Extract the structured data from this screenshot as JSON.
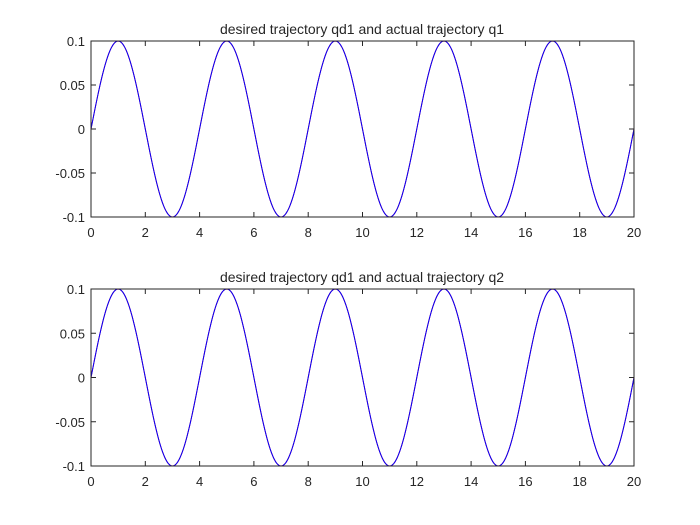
{
  "chart_data": [
    {
      "type": "line",
      "title": "desired trajectory qd1 and actual trajectory q1",
      "xlabel": "",
      "ylabel": "",
      "xlim": [
        0,
        20
      ],
      "ylim": [
        -0.1,
        0.1
      ],
      "x_ticks": [
        "0",
        "2",
        "4",
        "6",
        "8",
        "10",
        "12",
        "14",
        "16",
        "18",
        "20"
      ],
      "y_ticks": [
        "0.1",
        "0.05",
        "0",
        "-0.05",
        "-0.1"
      ],
      "grid": false,
      "box": true,
      "function": "0.1*sin(pi*t/2)",
      "x_start": 0,
      "x_end": 20,
      "series": [
        {
          "color": "#ff0000",
          "peak_t": [
            1,
            5,
            9,
            13,
            17
          ],
          "peak_value": 0.1,
          "trough_t": [
            3,
            7,
            11,
            15,
            19
          ],
          "trough_value": -0.1
        },
        {
          "color": "#0000ff",
          "peak_t": [
            1,
            5,
            9,
            13,
            17
          ],
          "peak_value": 0.1,
          "trough_t": [
            3,
            7,
            11,
            15,
            19
          ],
          "trough_value": -0.1
        }
      ]
    },
    {
      "type": "line",
      "title": "desired trajectory qd1 and actual trajectory q2",
      "xlabel": "",
      "ylabel": "",
      "xlim": [
        0,
        20
      ],
      "ylim": [
        -0.1,
        0.1
      ],
      "x_ticks": [
        "0",
        "2",
        "4",
        "6",
        "8",
        "10",
        "12",
        "14",
        "16",
        "18",
        "20"
      ],
      "y_ticks": [
        "0.1",
        "0.05",
        "0",
        "-0.05",
        "-0.1"
      ],
      "grid": false,
      "box": true,
      "function": "0.1*sin(pi*t/2)",
      "x_start": 0,
      "x_end": 20,
      "series": [
        {
          "color": "#ff0000",
          "peak_t": [
            1,
            5,
            9,
            13,
            17
          ],
          "peak_value": 0.1,
          "trough_t": [
            3,
            7,
            11,
            15,
            19
          ],
          "trough_value": -0.1
        },
        {
          "color": "#0000ff",
          "peak_t": [
            1,
            5,
            9,
            13,
            17
          ],
          "peak_value": 0.1,
          "trough_t": [
            3,
            7,
            11,
            15,
            19
          ],
          "trough_value": -0.1
        }
      ]
    }
  ]
}
